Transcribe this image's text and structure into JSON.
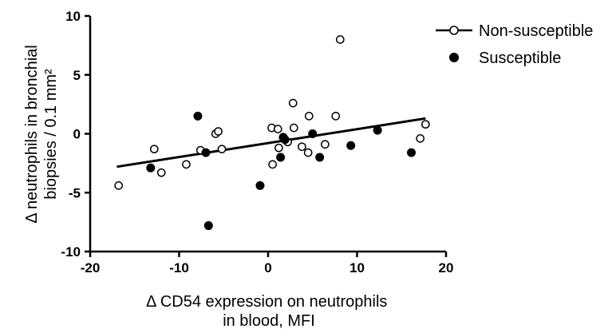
{
  "chart_data": {
    "type": "scatter",
    "title": "",
    "xlabel": [
      "Δ CD54 expression on neutrophils",
      "in blood, MFI"
    ],
    "ylabel": [
      "Δ neutrophils in bronchial",
      "biopsies / 0.1 mm²"
    ],
    "xlim": [
      -20,
      20
    ],
    "ylim": [
      -10,
      10
    ],
    "xticks": [
      -20,
      -10,
      0,
      10,
      20
    ],
    "yticks": [
      -10,
      -5,
      0,
      5,
      10
    ],
    "grid": false,
    "legend_position": "top-right",
    "series": [
      {
        "name": "Non-susceptible",
        "marker": "open-circle",
        "color": "#000000",
        "points": [
          [
            -16.8,
            -4.4
          ],
          [
            -12.8,
            -1.3
          ],
          [
            -12.0,
            -3.3
          ],
          [
            -9.2,
            -2.6
          ],
          [
            -7.6,
            -1.4
          ],
          [
            -5.9,
            0.0
          ],
          [
            -5.6,
            0.2
          ],
          [
            -5.2,
            -1.3
          ],
          [
            0.4,
            0.5
          ],
          [
            0.5,
            -2.6
          ],
          [
            1.1,
            0.4
          ],
          [
            1.2,
            -1.2
          ],
          [
            2.2,
            -0.7
          ],
          [
            2.8,
            2.6
          ],
          [
            2.9,
            0.5
          ],
          [
            3.8,
            -1.1
          ],
          [
            4.5,
            -1.6
          ],
          [
            4.6,
            1.5
          ],
          [
            6.4,
            -0.9
          ],
          [
            7.6,
            1.5
          ],
          [
            8.1,
            8.0
          ],
          [
            17.1,
            -0.4
          ],
          [
            17.7,
            0.8
          ]
        ]
      },
      {
        "name": "Susceptible",
        "marker": "filled-circle",
        "color": "#000000",
        "points": [
          [
            -13.2,
            -2.9
          ],
          [
            -7.9,
            1.5
          ],
          [
            -7.0,
            -1.6
          ],
          [
            -6.7,
            -7.8
          ],
          [
            -0.9,
            -4.4
          ],
          [
            1.4,
            -2.0
          ],
          [
            1.7,
            -0.3
          ],
          [
            1.9,
            -0.5
          ],
          [
            5.0,
            0.0
          ],
          [
            5.8,
            -2.0
          ],
          [
            9.3,
            -1.0
          ],
          [
            12.3,
            0.3
          ],
          [
            16.1,
            -1.6
          ]
        ]
      }
    ],
    "fit_line": {
      "x": [
        -17,
        17.7
      ],
      "y": [
        -2.8,
        1.3
      ]
    }
  }
}
